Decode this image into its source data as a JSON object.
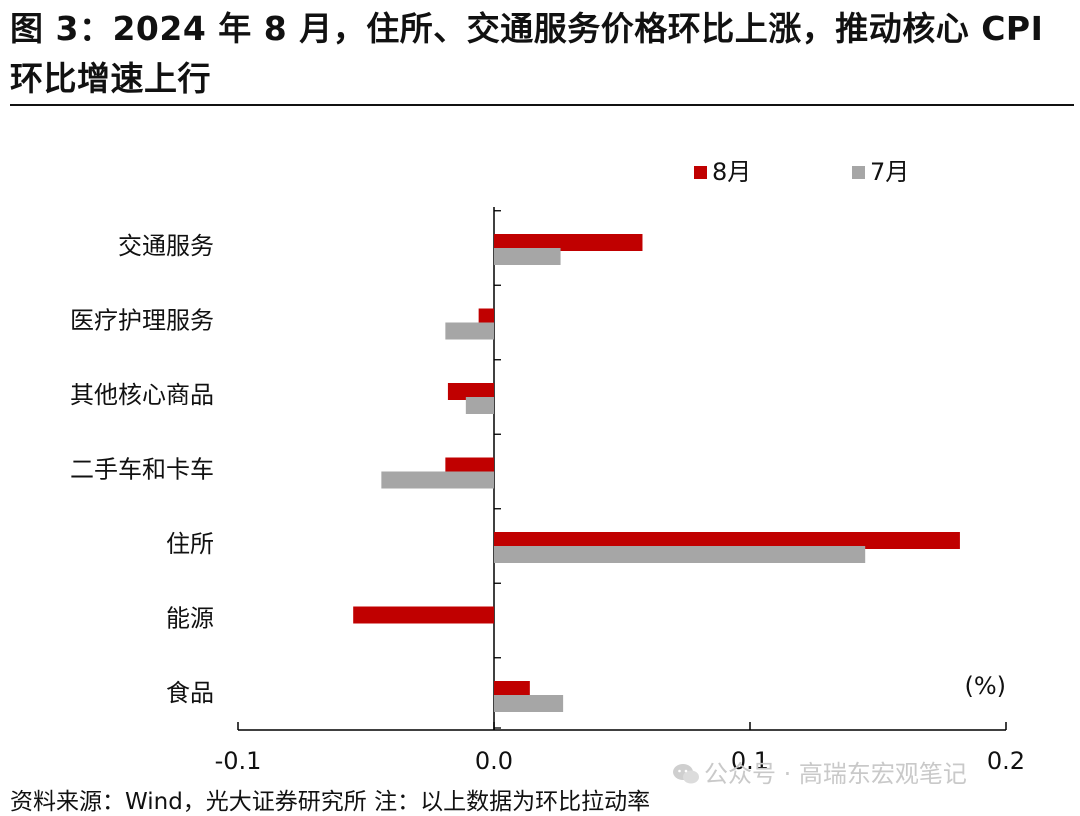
{
  "header": {
    "title": "图 3：2024 年 8 月，住所、交通服务价格环比上涨，推动核心 CPI 环比增速上行"
  },
  "chart_data": {
    "type": "bar",
    "orientation": "horizontal",
    "categories": [
      "交通服务",
      "医疗护理服务",
      "其他核心商品",
      "二手车和卡车",
      "住所",
      "能源",
      "食品"
    ],
    "series": [
      {
        "name": "8月",
        "color": "#c00000",
        "values": [
          0.058,
          -0.006,
          -0.018,
          -0.019,
          0.182,
          -0.055,
          0.014
        ]
      },
      {
        "name": "7月",
        "color": "#a6a6a6",
        "values": [
          0.026,
          -0.019,
          -0.011,
          -0.044,
          0.145,
          0.0,
          0.027
        ]
      }
    ],
    "xlim": [
      -0.1,
      0.2
    ],
    "xticks": [
      "-0.1",
      "0.0",
      "0.1",
      "0.2"
    ],
    "unit_label": "(%)",
    "legend_position": "top-right",
    "grid": false
  },
  "footer": {
    "source": "资料来源：Wind，光大证券研究所    注：以上数据为环比拉动率",
    "watermark": "公众号 · 高瑞东宏观笔记"
  }
}
